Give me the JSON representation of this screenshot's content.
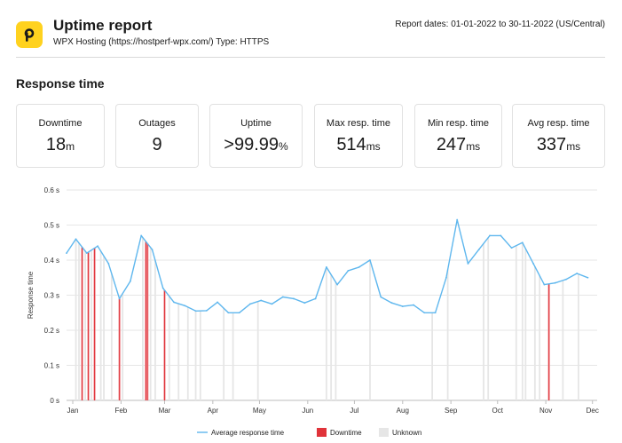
{
  "header": {
    "title": "Uptime report",
    "subtitle": "WPX Hosting (https://hostperf-wpx.com/) Type: HTTPS",
    "dates": "Report dates: 01-01-2022 to 30-11-2022 (US/Central)"
  },
  "section_title": "Response time",
  "stats": [
    {
      "label": "Downtime",
      "value": "18",
      "unit": "m"
    },
    {
      "label": "Outages",
      "value": "9",
      "unit": ""
    },
    {
      "label": "Uptime",
      "value": ">99.99",
      "unit": "%"
    },
    {
      "label": "Max resp. time",
      "value": "514",
      "unit": "ms"
    },
    {
      "label": "Min resp. time",
      "value": "247",
      "unit": "ms"
    },
    {
      "label": "Avg resp. time",
      "value": "337",
      "unit": "ms"
    }
  ],
  "colors": {
    "line": "#5fb7ee",
    "downtime": "#e0333a",
    "downtime_band": "#f2a3a6",
    "unknown": "#e6e6e6",
    "logo_bg": "#ffd21f"
  },
  "chart_data": {
    "type": "line",
    "ylabel": "Response time",
    "y_tick_labels": [
      "0 s",
      "0.1 s",
      "0.2 s",
      "0.3 s",
      "0.4 s",
      "0.5 s",
      "0.6 s"
    ],
    "y_ticks": [
      0,
      0.1,
      0.2,
      0.3,
      0.4,
      0.5,
      0.6
    ],
    "ylim": [
      0,
      0.6
    ],
    "xlim": [
      "2021-12-28",
      "2022-12-04"
    ],
    "x_tick_labels": [
      "Jan",
      "Feb",
      "Mar",
      "Apr",
      "May",
      "Jun",
      "Jul",
      "Aug",
      "Sep",
      "Oct",
      "Nov",
      "Dec"
    ],
    "x_ticks": [
      "2022-01-01",
      "2022-02-01",
      "2022-03-01",
      "2022-04-01",
      "2022-05-01",
      "2022-06-01",
      "2022-07-01",
      "2022-08-01",
      "2022-09-01",
      "2022-10-01",
      "2022-11-01",
      "2022-12-01"
    ],
    "grid": true,
    "legend_position": "bottom",
    "series": [
      {
        "name": "Average response time",
        "x": [
          "2021-12-28",
          "2022-01-03",
          "2022-01-10",
          "2022-01-17",
          "2022-01-24",
          "2022-01-31",
          "2022-02-07",
          "2022-02-14",
          "2022-02-21",
          "2022-02-28",
          "2022-03-07",
          "2022-03-14",
          "2022-03-21",
          "2022-03-28",
          "2022-04-04",
          "2022-04-11",
          "2022-04-18",
          "2022-04-25",
          "2022-05-02",
          "2022-05-09",
          "2022-05-16",
          "2022-05-23",
          "2022-05-30",
          "2022-06-06",
          "2022-06-13",
          "2022-06-20",
          "2022-06-27",
          "2022-07-04",
          "2022-07-11",
          "2022-07-18",
          "2022-07-25",
          "2022-08-01",
          "2022-08-08",
          "2022-08-15",
          "2022-08-22",
          "2022-08-29",
          "2022-09-05",
          "2022-09-12",
          "2022-09-19",
          "2022-09-26",
          "2022-10-03",
          "2022-10-10",
          "2022-10-17",
          "2022-10-24",
          "2022-10-31",
          "2022-11-07",
          "2022-11-14",
          "2022-11-21",
          "2022-11-28"
        ],
        "values": [
          0.42,
          0.46,
          0.42,
          0.44,
          0.39,
          0.29,
          0.34,
          0.47,
          0.43,
          0.32,
          0.28,
          0.27,
          0.255,
          0.256,
          0.28,
          0.25,
          0.25,
          0.275,
          0.285,
          0.275,
          0.295,
          0.29,
          0.278,
          0.29,
          0.38,
          0.33,
          0.37,
          0.38,
          0.4,
          0.295,
          0.278,
          0.268,
          0.272,
          0.25,
          0.25,
          0.35,
          0.515,
          0.39,
          0.43,
          0.47,
          0.47,
          0.435,
          0.45,
          0.39,
          0.33,
          0.335,
          0.345,
          0.362,
          0.35
        ]
      }
    ],
    "downtime": {
      "name": "Downtime",
      "x": [
        "2022-01-07",
        "2022-01-11",
        "2022-01-15",
        "2022-01-31",
        "2022-02-17",
        "2022-02-18",
        "2022-03-01",
        "2022-11-03"
      ]
    },
    "unknown": {
      "name": "Unknown",
      "x": [
        "2022-01-03",
        "2022-01-05",
        "2022-01-09",
        "2022-01-13",
        "2022-01-19",
        "2022-01-21",
        "2022-01-26",
        "2022-02-02",
        "2022-02-15",
        "2022-02-20",
        "2022-02-23",
        "2022-03-04",
        "2022-03-10",
        "2022-03-16",
        "2022-03-21",
        "2022-03-24",
        "2022-04-08",
        "2022-04-14",
        "2022-04-30",
        "2022-06-13",
        "2022-06-16",
        "2022-06-19",
        "2022-07-11",
        "2022-08-20",
        "2022-08-30",
        "2022-09-22",
        "2022-09-25",
        "2022-10-13",
        "2022-10-17",
        "2022-10-19",
        "2022-10-25",
        "2022-10-28",
        "2022-11-12",
        "2022-11-22"
      ]
    }
  }
}
